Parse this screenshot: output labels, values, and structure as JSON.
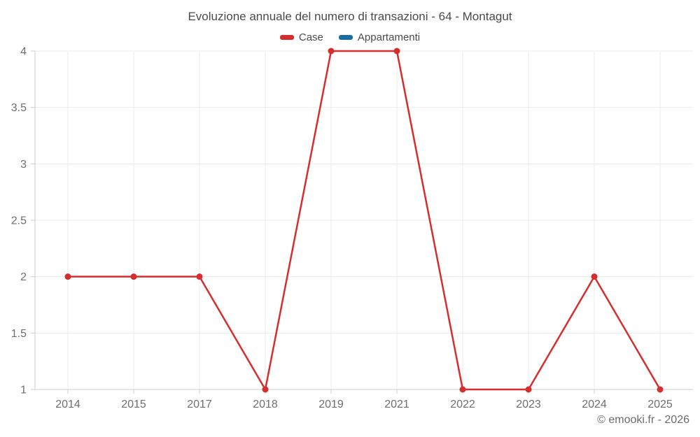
{
  "chart_data": {
    "type": "line",
    "title": "Evoluzione annuale del numero di transazioni - 64 - Montagut",
    "categories": [
      "2014",
      "2015",
      "2017",
      "2018",
      "2019",
      "2021",
      "2022",
      "2023",
      "2024",
      "2025"
    ],
    "series": [
      {
        "name": "Case",
        "color": "#d62e2e",
        "values": [
          2,
          2,
          2,
          1,
          4,
          4,
          1,
          1,
          2,
          1
        ]
      },
      {
        "name": "Appartamenti",
        "color": "#1a6da3",
        "values": []
      }
    ],
    "ylim": [
      1,
      4
    ],
    "yticks": [
      1,
      1.5,
      2,
      2.5,
      3,
      3.5,
      4
    ],
    "xlabel": "",
    "ylabel": "",
    "grid": true,
    "legend_position": "top"
  },
  "watermark": {
    "text": "© emooki.fr - 2026"
  },
  "colors": {
    "title_text": "#4a4a4a",
    "axis_text": "#6e6e6e",
    "gridline": "#ebebeb",
    "axis_line": "#cccccc",
    "background": "#ffffff"
  }
}
